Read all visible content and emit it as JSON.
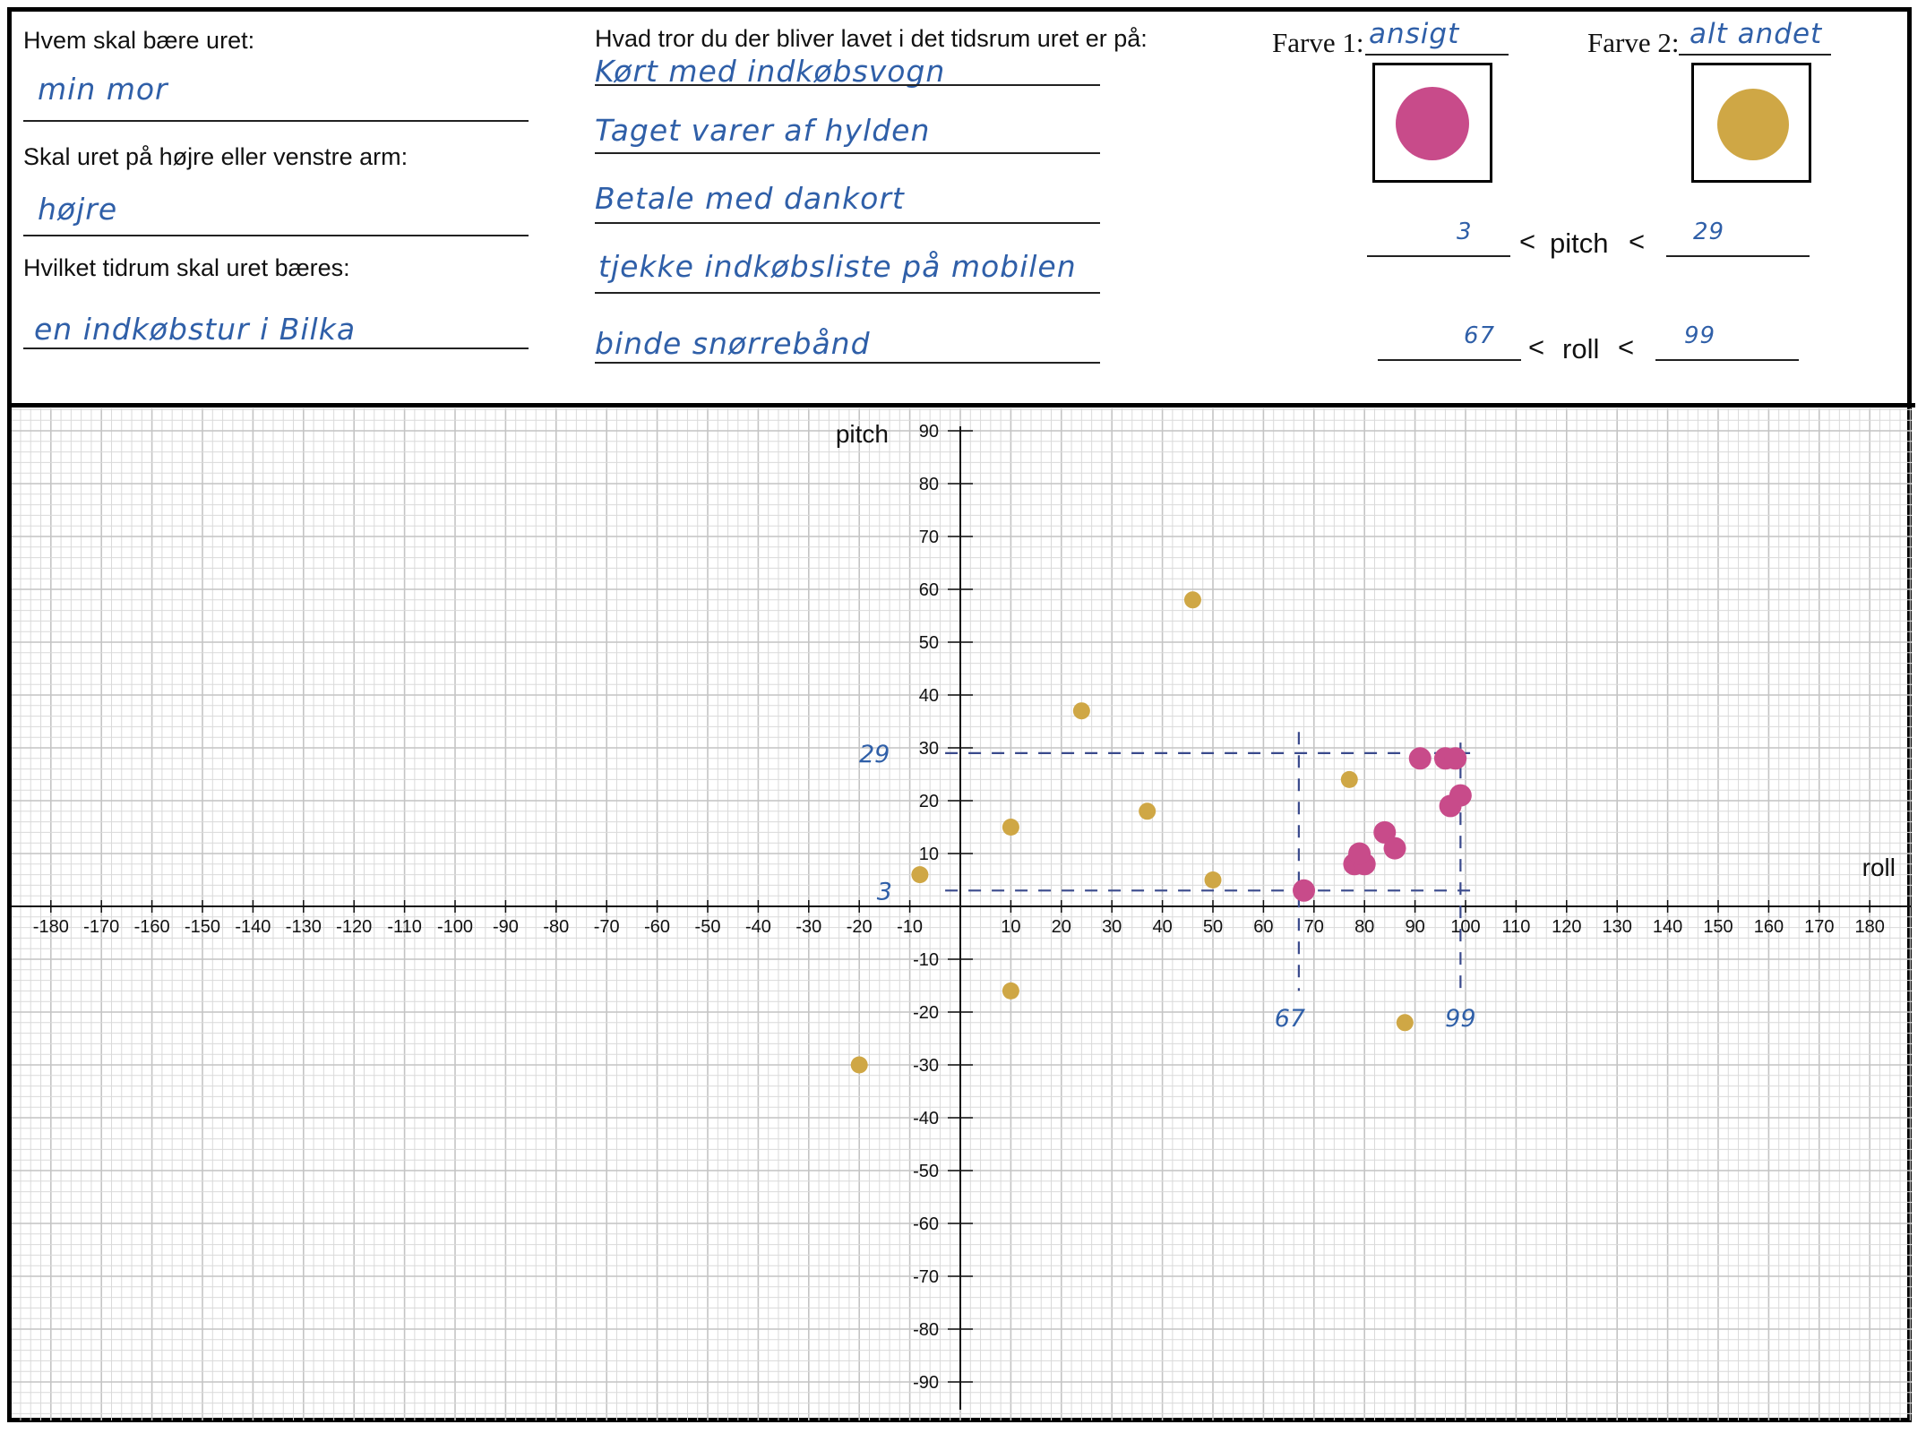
{
  "form": {
    "q1": "Hvem skal bære uret:",
    "a1": "min mor",
    "q2": "Skal uret på højre eller venstre arm:",
    "a2": "højre",
    "q3": "Hvilket tidrum skal uret bæres:",
    "a3": "en indkøbstur i Bilka",
    "q4": "Hvad tror du der bliver lavet i det tidsrum uret er på:",
    "activities": [
      "Kørt med indkøbsvogn",
      "Taget varer af hylden",
      "Betale med dankort",
      "tjekke indkøbsliste på mobilen",
      "binde snørrebånd"
    ]
  },
  "colors_legend": {
    "farve1_label": "Farve 1:",
    "farve1_value": "ansigt",
    "farve1_color": "#c84b8a",
    "farve2_label": "Farve 2:",
    "farve2_value": "alt andet",
    "farve2_color": "#cfa745"
  },
  "ranges": {
    "pitch_min": "3",
    "pitch_label": "pitch",
    "pitch_max": "29",
    "roll_min": "67",
    "roll_label": "roll",
    "roll_max": "99",
    "lt": "<"
  },
  "chart_data": {
    "type": "scatter",
    "xlabel": "roll",
    "ylabel": "pitch",
    "xlim": [
      -180,
      180
    ],
    "ylim": [
      -90,
      90
    ],
    "xticks": [
      -180,
      -170,
      -160,
      -150,
      -140,
      -130,
      -120,
      -110,
      -100,
      -90,
      -80,
      -70,
      -60,
      -50,
      -40,
      -30,
      -20,
      -10,
      10,
      20,
      30,
      40,
      50,
      60,
      70,
      80,
      90,
      100,
      110,
      120,
      130,
      140,
      150,
      160,
      170,
      180
    ],
    "yticks": [
      90,
      80,
      70,
      60,
      50,
      40,
      30,
      20,
      10,
      -10,
      -20,
      -30,
      -40,
      -50,
      -60,
      -70,
      -80,
      -90
    ],
    "grid": true,
    "series": [
      {
        "name": "ansigt",
        "color": "#c84b8a",
        "points": [
          {
            "x": 68,
            "y": 3
          },
          {
            "x": 78,
            "y": 8
          },
          {
            "x": 80,
            "y": 8
          },
          {
            "x": 79,
            "y": 10
          },
          {
            "x": 84,
            "y": 14
          },
          {
            "x": 86,
            "y": 11
          },
          {
            "x": 91,
            "y": 28
          },
          {
            "x": 96,
            "y": 28
          },
          {
            "x": 98,
            "y": 28
          },
          {
            "x": 97,
            "y": 19
          },
          {
            "x": 99,
            "y": 21
          }
        ]
      },
      {
        "name": "alt andet",
        "color": "#cfa745",
        "points": [
          {
            "x": -20,
            "y": -30
          },
          {
            "x": -8,
            "y": 6
          },
          {
            "x": 10,
            "y": 15
          },
          {
            "x": 10,
            "y": -16
          },
          {
            "x": 24,
            "y": 37
          },
          {
            "x": 37,
            "y": 18
          },
          {
            "x": 46,
            "y": 58
          },
          {
            "x": 50,
            "y": 5
          },
          {
            "x": 77,
            "y": 24
          },
          {
            "x": 88,
            "y": -22
          }
        ]
      }
    ],
    "annotations": {
      "pitch_low": "3",
      "pitch_high": "29",
      "roll_low": "67",
      "roll_high": "99"
    }
  }
}
